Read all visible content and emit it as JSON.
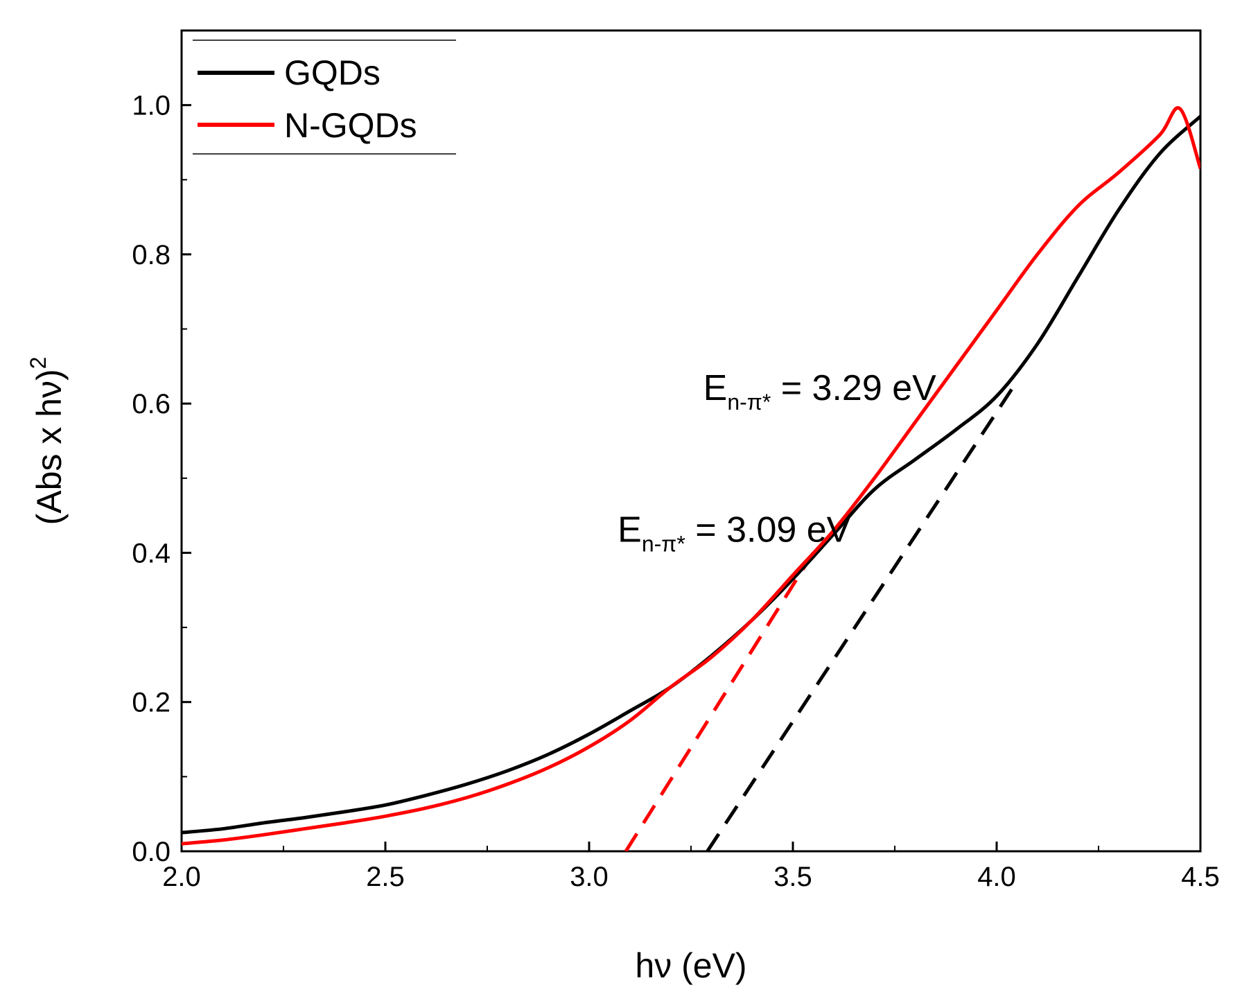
{
  "chart_data": {
    "type": "line",
    "title": "",
    "xlabel": "hν (eV)",
    "ylabel": "(Abs x hν)",
    "ylabel_sup": "2",
    "xlim": [
      2.0,
      4.5
    ],
    "ylim": [
      0.0,
      1.1
    ],
    "xticks": [
      2.0,
      2.5,
      3.0,
      3.5,
      4.0,
      4.5
    ],
    "xtick_labels": [
      "2.0",
      "2.5",
      "3.0",
      "3.5",
      "4.0",
      "4.5"
    ],
    "yticks": [
      0.0,
      0.2,
      0.4,
      0.6,
      0.8,
      1.0
    ],
    "ytick_labels": [
      "0.0",
      "0.2",
      "0.4",
      "0.6",
      "0.8",
      "1.0"
    ],
    "legend_position": "top-left",
    "series": [
      {
        "name": "GQDs",
        "color": "#000000",
        "x": [
          2.0,
          2.1,
          2.2,
          2.3,
          2.4,
          2.5,
          2.6,
          2.7,
          2.8,
          2.9,
          3.0,
          3.1,
          3.2,
          3.3,
          3.4,
          3.5,
          3.6,
          3.7,
          3.8,
          3.9,
          4.0,
          4.1,
          4.2,
          4.3,
          4.4,
          4.5
        ],
        "values": [
          0.025,
          0.03,
          0.038,
          0.045,
          0.053,
          0.062,
          0.075,
          0.09,
          0.108,
          0.13,
          0.157,
          0.188,
          0.22,
          0.262,
          0.31,
          0.365,
          0.425,
          0.485,
          0.525,
          0.565,
          0.61,
          0.68,
          0.77,
          0.86,
          0.935,
          0.985
        ]
      },
      {
        "name": "N-GQDs",
        "color": "#ff0000",
        "x": [
          2.0,
          2.1,
          2.2,
          2.3,
          2.4,
          2.5,
          2.6,
          2.7,
          2.8,
          2.9,
          3.0,
          3.1,
          3.2,
          3.3,
          3.4,
          3.5,
          3.6,
          3.7,
          3.8,
          3.9,
          4.0,
          4.1,
          4.2,
          4.3,
          4.4,
          4.45,
          4.5
        ],
        "values": [
          0.01,
          0.015,
          0.022,
          0.03,
          0.038,
          0.047,
          0.058,
          0.072,
          0.09,
          0.112,
          0.14,
          0.175,
          0.22,
          0.26,
          0.31,
          0.37,
          0.43,
          0.5,
          0.575,
          0.65,
          0.725,
          0.8,
          0.865,
          0.91,
          0.96,
          0.995,
          0.915
        ]
      }
    ],
    "fit_lines": [
      {
        "series": "N-GQDs",
        "color": "#ff0000",
        "style": "dashed",
        "x": [
          3.09,
          3.55
        ],
        "values": [
          0.0,
          0.4
        ]
      },
      {
        "series": "GQDs",
        "color": "#000000",
        "style": "dashed",
        "x": [
          3.29,
          4.05
        ],
        "values": [
          0.0,
          0.63
        ]
      }
    ],
    "annotations": [
      {
        "main": "E",
        "sub": "n-π*",
        "rest": " = 3.29 eV",
        "x": 3.28,
        "y": 0.605
      },
      {
        "main": "E",
        "sub": "n-π*",
        "rest": " = 3.09 eV",
        "x": 3.07,
        "y": 0.415
      }
    ]
  }
}
